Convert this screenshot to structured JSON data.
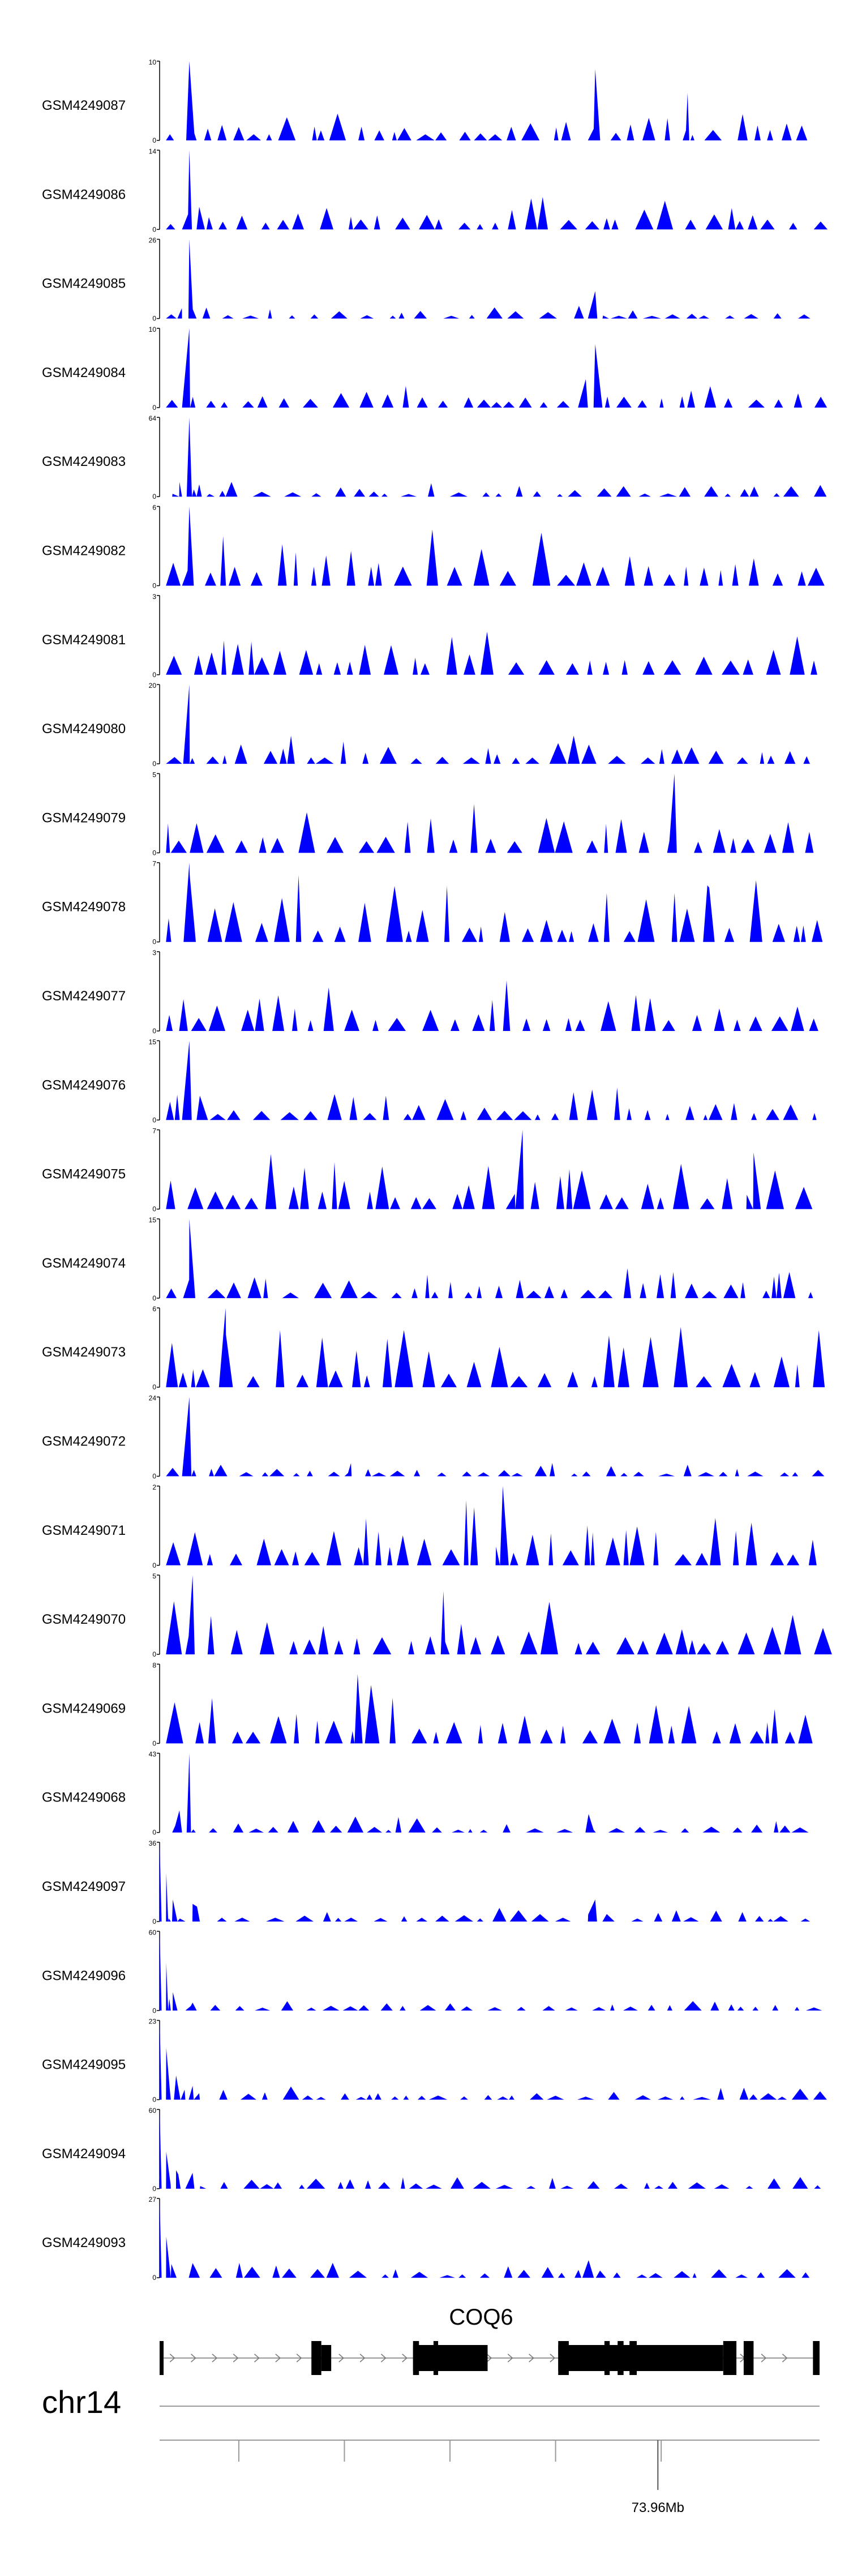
{
  "chart_data": {
    "type": "area",
    "colors": {
      "signal": "#0000ff",
      "axis": "#000000",
      "gene": "#000000"
    },
    "x_range": [
      0,
      100
    ],
    "tracks": [
      {
        "name": "GSM4249087",
        "ymax": 10,
        "seed": 11,
        "peaks": [
          [
            4.5,
            10
          ],
          [
            66,
            9
          ],
          [
            80,
            6
          ]
        ]
      },
      {
        "name": "GSM4249086",
        "ymax": 14,
        "seed": 12,
        "peaks": [
          [
            4.5,
            14
          ],
          [
            6,
            4
          ]
        ]
      },
      {
        "name": "GSM4249085",
        "ymax": 26,
        "seed": 13,
        "peaks": [
          [
            4.5,
            26
          ],
          [
            66,
            9
          ]
        ]
      },
      {
        "name": "GSM4249084",
        "ymax": 10,
        "seed": 14,
        "peaks": [
          [
            4.5,
            10
          ],
          [
            66,
            8
          ]
        ]
      },
      {
        "name": "GSM4249083",
        "ymax": 64,
        "seed": 15,
        "peaks": [
          [
            4.5,
            64
          ],
          [
            3,
            12
          ],
          [
            6,
            10
          ]
        ]
      },
      {
        "name": "GSM4249082",
        "ymax": 6,
        "seed": 16,
        "peaks": [
          [
            4.5,
            6
          ]
        ]
      },
      {
        "name": "GSM4249081",
        "ymax": 3,
        "seed": 17,
        "peaks": []
      },
      {
        "name": "GSM4249080",
        "ymax": 20,
        "seed": 18,
        "peaks": [
          [
            4.5,
            20
          ]
        ]
      },
      {
        "name": "GSM4249079",
        "ymax": 5,
        "seed": 19,
        "peaks": [
          [
            78,
            5
          ]
        ]
      },
      {
        "name": "GSM4249078",
        "ymax": 7,
        "seed": 20,
        "peaks": [
          [
            4.5,
            7
          ],
          [
            83,
            5
          ]
        ]
      },
      {
        "name": "GSM4249077",
        "ymax": 3,
        "seed": 21,
        "peaks": []
      },
      {
        "name": "GSM4249076",
        "ymax": 15,
        "seed": 22,
        "peaks": [
          [
            4.5,
            15
          ]
        ]
      },
      {
        "name": "GSM4249075",
        "ymax": 7,
        "seed": 23,
        "peaks": [
          [
            55,
            7
          ],
          [
            90,
            5
          ]
        ]
      },
      {
        "name": "GSM4249074",
        "ymax": 15,
        "seed": 24,
        "peaks": [
          [
            4.5,
            15
          ]
        ]
      },
      {
        "name": "GSM4249073",
        "ymax": 6,
        "seed": 25,
        "peaks": [
          [
            10,
            6
          ]
        ]
      },
      {
        "name": "GSM4249072",
        "ymax": 24,
        "seed": 26,
        "peaks": [
          [
            4.5,
            24
          ],
          [
            29,
            4
          ]
        ]
      },
      {
        "name": "GSM4249071",
        "ymax": 2,
        "seed": 27,
        "peaks": [
          [
            52,
            2
          ]
        ]
      },
      {
        "name": "GSM4249070",
        "ymax": 5,
        "seed": 28,
        "peaks": [
          [
            5,
            5
          ],
          [
            43,
            4
          ]
        ]
      },
      {
        "name": "GSM4249069",
        "ymax": 8,
        "seed": 29,
        "peaks": [
          [
            30,
            7
          ]
        ]
      },
      {
        "name": "GSM4249068",
        "ymax": 43,
        "seed": 30,
        "peaks": [
          [
            4.5,
            43
          ],
          [
            3,
            12
          ],
          [
            65,
            10
          ]
        ]
      },
      {
        "name": "GSM4249097",
        "ymax": 36,
        "seed": 31,
        "peaks": [
          [
            0,
            36
          ],
          [
            1,
            22
          ],
          [
            2,
            10
          ],
          [
            5,
            8
          ],
          [
            66,
            10
          ]
        ]
      },
      {
        "name": "GSM4249096",
        "ymax": 60,
        "seed": 32,
        "peaks": [
          [
            0,
            60
          ],
          [
            1,
            36
          ],
          [
            2,
            14
          ],
          [
            5,
            6
          ]
        ]
      },
      {
        "name": "GSM4249095",
        "ymax": 23,
        "seed": 33,
        "peaks": [
          [
            0,
            23
          ],
          [
            1,
            15
          ],
          [
            2.5,
            7
          ],
          [
            5,
            4
          ]
        ]
      },
      {
        "name": "GSM4249094",
        "ymax": 60,
        "seed": 34,
        "peaks": [
          [
            0,
            60
          ],
          [
            1,
            28
          ],
          [
            2.5,
            14
          ],
          [
            5,
            12
          ]
        ]
      },
      {
        "name": "GSM4249093",
        "ymax": 27,
        "seed": 35,
        "peaks": [
          [
            0,
            27
          ],
          [
            1,
            14
          ],
          [
            5,
            5
          ],
          [
            65,
            6
          ]
        ]
      }
    ],
    "gene": {
      "name": "COQ6",
      "strand": "+",
      "exons": [
        [
          0,
          0.6,
          "tall"
        ],
        [
          23,
          24.5,
          "tall"
        ],
        [
          24.5,
          26,
          "short"
        ],
        [
          38.4,
          39.3,
          "tall"
        ],
        [
          38.4,
          49.7,
          "short"
        ],
        [
          41.5,
          42.2,
          "tall"
        ],
        [
          60.4,
          62,
          "tall"
        ],
        [
          60.4,
          85.4,
          "short"
        ],
        [
          67.4,
          68.2,
          "tall"
        ],
        [
          69.4,
          70.3,
          "tall"
        ],
        [
          71.2,
          72.3,
          "tall"
        ],
        [
          85.4,
          87.4,
          "tall"
        ],
        [
          88.5,
          90,
          "tall"
        ],
        [
          99,
          100,
          "tall"
        ]
      ]
    },
    "chromosome": "chr14",
    "axis": {
      "ticks": [
        12,
        28,
        44,
        60,
        76
      ],
      "labeled_tick": {
        "x": 75.5,
        "label": "73.96Mb"
      }
    }
  }
}
